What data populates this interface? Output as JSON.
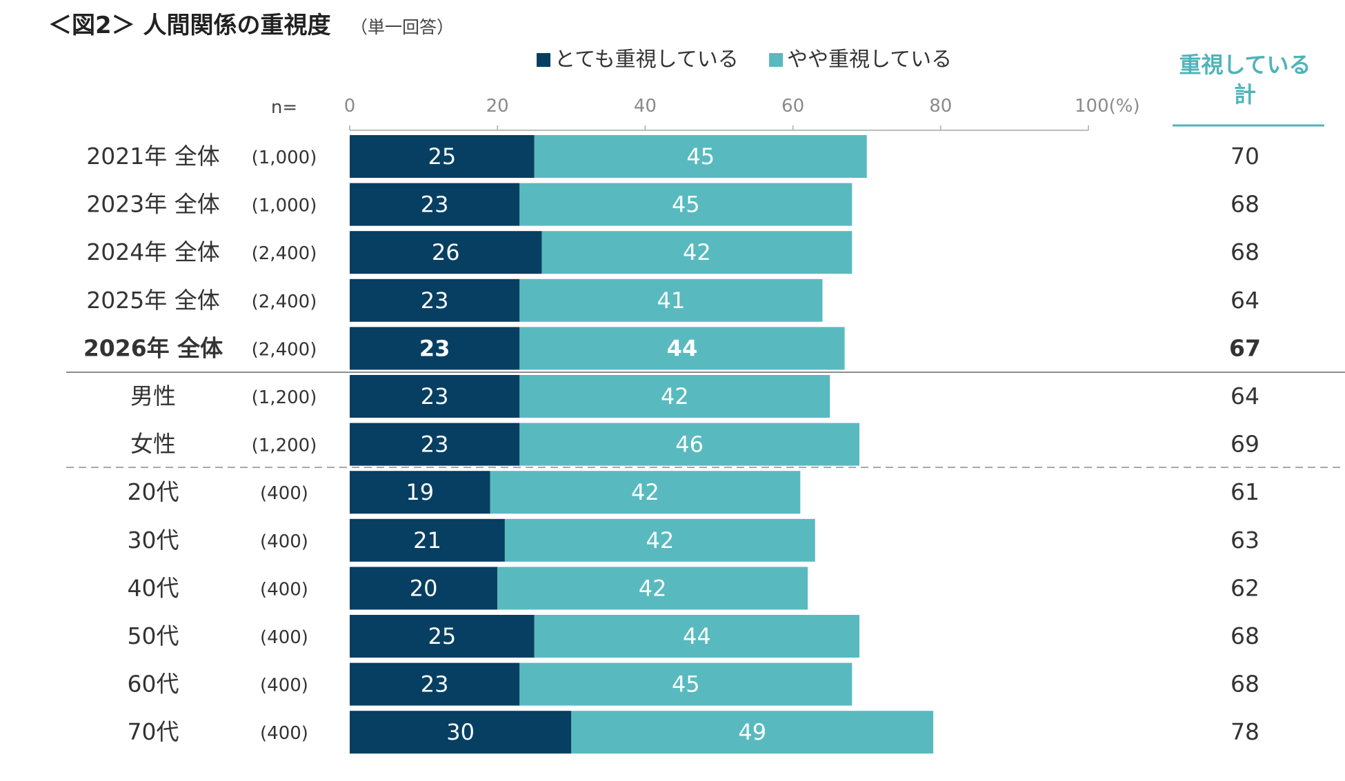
{
  "title": {
    "main": "＜図2＞ 人間関係の重視度",
    "sub": "（単一回答）"
  },
  "n_header": "n=",
  "total_header": [
    "重視している",
    "計"
  ],
  "colors": {
    "dark": "#063f62",
    "light": "#58babf",
    "accent": "#4fb4b9",
    "axis": "#bbbbbb"
  },
  "chart_data": {
    "type": "bar",
    "orientation": "horizontal",
    "stacked": true,
    "title": "＜図2＞ 人間関係の重視度",
    "subtitle": "（単一回答）",
    "xlim": [
      0,
      100
    ],
    "x_ticks": [
      "0",
      "20",
      "40",
      "60",
      "80",
      "100(%)"
    ],
    "legend": [
      "とても重視している",
      "やや重視している"
    ],
    "legend_position": "top",
    "categories": [
      {
        "label": "2021年 全体",
        "n": "(1,000)",
        "bold": false
      },
      {
        "label": "2023年 全体",
        "n": "(1,000)",
        "bold": false
      },
      {
        "label": "2024年 全体",
        "n": "(2,400)",
        "bold": false
      },
      {
        "label": "2025年 全体",
        "n": "(2,400)",
        "bold": false
      },
      {
        "label": "2026年 全体",
        "n": "(2,400)",
        "bold": true
      },
      {
        "label": "男性",
        "n": "(1,200)",
        "bold": false
      },
      {
        "label": "女性",
        "n": "(1,200)",
        "bold": false
      },
      {
        "label": "20代",
        "n": "(400)",
        "bold": false
      },
      {
        "label": "30代",
        "n": "(400)",
        "bold": false
      },
      {
        "label": "40代",
        "n": "(400)",
        "bold": false
      },
      {
        "label": "50代",
        "n": "(400)",
        "bold": false
      },
      {
        "label": "60代",
        "n": "(400)",
        "bold": false
      },
      {
        "label": "70代",
        "n": "(400)",
        "bold": false
      }
    ],
    "series": [
      {
        "name": "とても重視している",
        "values": [
          25,
          23,
          26,
          23,
          23,
          23,
          23,
          19,
          21,
          20,
          25,
          23,
          30
        ]
      },
      {
        "name": "やや重視している",
        "values": [
          45,
          45,
          42,
          41,
          44,
          42,
          46,
          42,
          42,
          42,
          44,
          45,
          49
        ]
      }
    ],
    "totals_label": "重視している計",
    "totals": [
      70,
      68,
      68,
      64,
      67,
      64,
      69,
      61,
      63,
      62,
      68,
      68,
      78
    ]
  }
}
